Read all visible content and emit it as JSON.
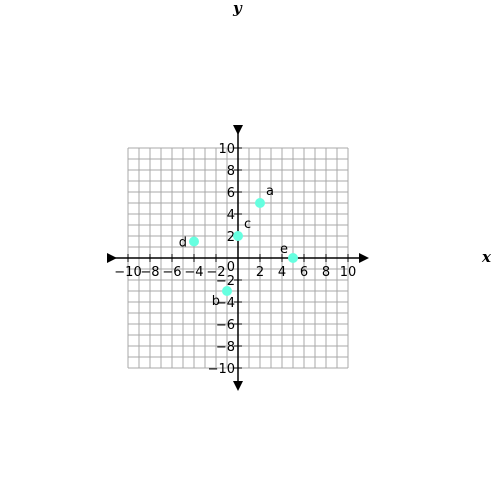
{
  "chart_data": {
    "type": "scatter",
    "xlabel": "x",
    "ylabel": "y",
    "xlim": [
      -10,
      10
    ],
    "ylim": [
      -10,
      10
    ],
    "grid": true,
    "x_ticks": [
      -10,
      -8,
      -6,
      -4,
      -2,
      2,
      4,
      6,
      8,
      10
    ],
    "y_ticks": [
      -10,
      -8,
      -6,
      -4,
      -2,
      2,
      4,
      6,
      8,
      10
    ],
    "x_tick_labels": [
      "−10",
      "−8",
      "−6",
      "−4",
      "−2",
      "2",
      "4",
      "6",
      "8",
      "10"
    ],
    "y_tick_labels": [
      "−10",
      "−8",
      "−6",
      "−4",
      "−2",
      "2",
      "4",
      "6",
      "8",
      "10"
    ],
    "origin_label": "0",
    "point_color": "#66ffe0",
    "points": [
      {
        "label": "a",
        "x": 2,
        "y": 5,
        "label_side": "upper-right"
      },
      {
        "label": "b",
        "x": -1,
        "y": -3,
        "label_side": "lower-left"
      },
      {
        "label": "c",
        "x": 0,
        "y": 2,
        "label_side": "upper-right"
      },
      {
        "label": "d",
        "x": -4,
        "y": 1.5,
        "label_side": "left"
      },
      {
        "label": "e",
        "x": 5,
        "y": 0,
        "label_side": "upper-left"
      }
    ]
  }
}
